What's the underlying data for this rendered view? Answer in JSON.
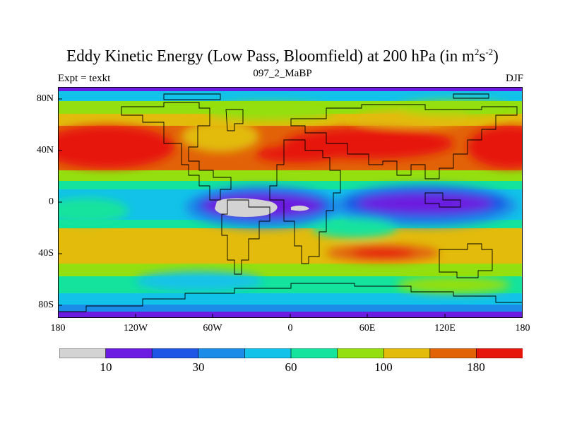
{
  "header": {
    "title": "Eddy Kinetic Energy (Low Pass, Bloomfield) at 200 hPa (in m",
    "title_sup1": "2",
    "title_mid": "s",
    "title_sup2": "-2",
    "title_end": ")",
    "subtitle": "097_2_MaBP",
    "left_label": "Expt = texkt",
    "right_label": "DJF"
  },
  "map": {
    "lat_labels": [
      "80N",
      "40N",
      "0",
      "40S",
      "80S"
    ],
    "lon_labels": [
      "180",
      "120W",
      "60W",
      "0",
      "60E",
      "120E",
      "180"
    ]
  },
  "colorbar": {
    "colors": [
      "#d3d3d3",
      "#6c1ce0",
      "#1f55e5",
      "#1b8ce8",
      "#12c2e8",
      "#13e39d",
      "#94df0f",
      "#e2bb0c",
      "#e26208",
      "#e6160c"
    ],
    "labels": [
      "10",
      "30",
      "60",
      "100",
      "180"
    ]
  },
  "colors": {
    "land_outline": "#000000",
    "frame": "#000000"
  }
}
